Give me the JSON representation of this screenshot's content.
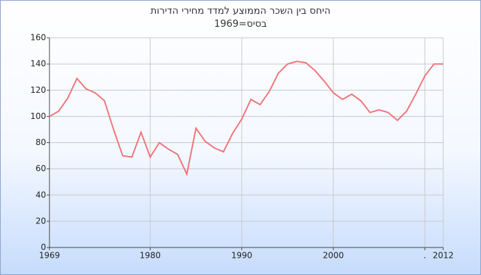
{
  "chart_data": {
    "type": "line",
    "title": "היחס בין השכר הממוצע למדד מחירי הדירות",
    "subtitle": "בסיס=1969",
    "x": [
      1969,
      1970,
      1971,
      1972,
      1973,
      1974,
      1975,
      1976,
      1977,
      1978,
      1979,
      1980,
      1981,
      1982,
      1983,
      1984,
      1985,
      1986,
      1987,
      1988,
      1989,
      1990,
      1991,
      1992,
      1993,
      1994,
      1995,
      1996,
      1997,
      1998,
      1999,
      2000,
      2001,
      2002,
      2003,
      2004,
      2005,
      2006,
      2007,
      2008,
      2009,
      2010,
      2011,
      2012
    ],
    "values": [
      100,
      104,
      114,
      129,
      121,
      118,
      112,
      90,
      70,
      69,
      88,
      69,
      80,
      75,
      71,
      56,
      91,
      81,
      76,
      73,
      87,
      98,
      113,
      109,
      119,
      133,
      140,
      142,
      141,
      135,
      127,
      118,
      113,
      117,
      112,
      103,
      105,
      103,
      97,
      104,
      117,
      131,
      140,
      140
    ],
    "color": "#f07377",
    "xlim": [
      1969,
      2012
    ],
    "xticks": [
      1969,
      1980,
      1990,
      2000,
      {
        "value": 2010,
        "label": "."
      },
      2012
    ],
    "ylim": [
      0,
      160
    ],
    "yticks": [
      0,
      20,
      40,
      60,
      80,
      100,
      120,
      140,
      160
    ],
    "grid": true
  }
}
